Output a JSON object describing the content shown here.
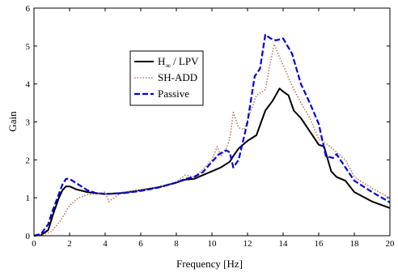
{
  "chart_data": {
    "type": "line",
    "xlabel": "Frequency [Hz]",
    "ylabel": "Gain",
    "xlim": [
      0,
      20
    ],
    "ylim": [
      0,
      6
    ],
    "xticks": [
      0,
      2,
      4,
      6,
      8,
      10,
      12,
      14,
      16,
      18,
      20
    ],
    "yticks": [
      0,
      1,
      2,
      3,
      4,
      5,
      6
    ],
    "grid": false,
    "legend_position": "upper-left",
    "series": [
      {
        "name": "H∞ / LPV",
        "legend_main": "H",
        "legend_sub": "∞",
        "legend_rest": " / LPV",
        "color": "#000000",
        "style": "solid",
        "points": [
          [
            0,
            0
          ],
          [
            0.4,
            0.02
          ],
          [
            0.8,
            0.15
          ],
          [
            1.1,
            0.6
          ],
          [
            1.4,
            1.0
          ],
          [
            1.6,
            1.2
          ],
          [
            1.8,
            1.3
          ],
          [
            2.0,
            1.3
          ],
          [
            2.4,
            1.22
          ],
          [
            3.0,
            1.15
          ],
          [
            3.5,
            1.12
          ],
          [
            4.0,
            1.1
          ],
          [
            5.0,
            1.13
          ],
          [
            6.0,
            1.2
          ],
          [
            7.0,
            1.28
          ],
          [
            8.0,
            1.4
          ],
          [
            8.5,
            1.48
          ],
          [
            9.0,
            1.5
          ],
          [
            9.5,
            1.6
          ],
          [
            10.0,
            1.7
          ],
          [
            10.5,
            1.8
          ],
          [
            11.0,
            1.95
          ],
          [
            11.2,
            2.1
          ],
          [
            11.5,
            2.3
          ],
          [
            12.0,
            2.5
          ],
          [
            12.5,
            2.65
          ],
          [
            13.0,
            3.3
          ],
          [
            13.4,
            3.55
          ],
          [
            13.8,
            3.88
          ],
          [
            14.0,
            3.8
          ],
          [
            14.3,
            3.7
          ],
          [
            14.6,
            3.3
          ],
          [
            15.0,
            3.1
          ],
          [
            15.5,
            2.75
          ],
          [
            16.0,
            2.4
          ],
          [
            16.3,
            2.35
          ],
          [
            16.7,
            1.7
          ],
          [
            17.0,
            1.55
          ],
          [
            17.5,
            1.45
          ],
          [
            18.0,
            1.15
          ],
          [
            19.0,
            0.9
          ],
          [
            20.0,
            0.73
          ]
        ]
      },
      {
        "name": "SH-ADD",
        "color": "#c0785a",
        "style": "dotted",
        "points": [
          [
            0,
            0
          ],
          [
            0.5,
            0.02
          ],
          [
            1.0,
            0.12
          ],
          [
            1.5,
            0.4
          ],
          [
            2.0,
            0.8
          ],
          [
            2.5,
            1.0
          ],
          [
            3.0,
            1.08
          ],
          [
            3.5,
            1.1
          ],
          [
            4.0,
            1.15
          ],
          [
            4.2,
            0.9
          ],
          [
            4.5,
            1.0
          ],
          [
            5.0,
            1.15
          ],
          [
            6.0,
            1.2
          ],
          [
            7.0,
            1.28
          ],
          [
            8.0,
            1.42
          ],
          [
            8.5,
            1.6
          ],
          [
            9.0,
            1.55
          ],
          [
            9.5,
            1.75
          ],
          [
            10.0,
            2.0
          ],
          [
            10.3,
            2.35
          ],
          [
            10.5,
            2.1
          ],
          [
            10.8,
            2.3
          ],
          [
            11.0,
            2.55
          ],
          [
            11.2,
            3.25
          ],
          [
            11.5,
            2.85
          ],
          [
            11.8,
            2.8
          ],
          [
            12.0,
            3.05
          ],
          [
            12.5,
            3.7
          ],
          [
            13.0,
            3.85
          ],
          [
            13.3,
            4.6
          ],
          [
            13.5,
            5.05
          ],
          [
            13.8,
            4.7
          ],
          [
            14.0,
            4.5
          ],
          [
            14.5,
            3.95
          ],
          [
            15.0,
            3.5
          ],
          [
            15.5,
            3.1
          ],
          [
            16.0,
            2.55
          ],
          [
            16.5,
            2.4
          ],
          [
            17.0,
            2.2
          ],
          [
            17.5,
            2.0
          ],
          [
            18.0,
            1.55
          ],
          [
            19.0,
            1.25
          ],
          [
            20.0,
            1.0
          ]
        ]
      },
      {
        "name": "Passive",
        "color": "#0000e0",
        "style": "dashed",
        "points": [
          [
            0,
            0
          ],
          [
            0.4,
            0.05
          ],
          [
            0.8,
            0.3
          ],
          [
            1.0,
            0.6
          ],
          [
            1.2,
            0.85
          ],
          [
            1.4,
            1.1
          ],
          [
            1.6,
            1.35
          ],
          [
            1.8,
            1.5
          ],
          [
            2.0,
            1.5
          ],
          [
            2.5,
            1.35
          ],
          [
            3.0,
            1.2
          ],
          [
            3.5,
            1.12
          ],
          [
            4.0,
            1.1
          ],
          [
            5.0,
            1.12
          ],
          [
            6.0,
            1.18
          ],
          [
            7.0,
            1.27
          ],
          [
            8.0,
            1.4
          ],
          [
            8.5,
            1.5
          ],
          [
            9.0,
            1.55
          ],
          [
            9.5,
            1.68
          ],
          [
            10.0,
            1.95
          ],
          [
            10.4,
            2.15
          ],
          [
            10.8,
            2.25
          ],
          [
            11.0,
            2.2
          ],
          [
            11.2,
            1.8
          ],
          [
            11.5,
            2.0
          ],
          [
            12.0,
            3.0
          ],
          [
            12.4,
            4.2
          ],
          [
            12.7,
            4.4
          ],
          [
            13.0,
            5.3
          ],
          [
            13.3,
            5.2
          ],
          [
            13.6,
            5.15
          ],
          [
            14.0,
            5.2
          ],
          [
            14.5,
            4.8
          ],
          [
            15.0,
            4.0
          ],
          [
            15.5,
            3.5
          ],
          [
            16.0,
            2.95
          ],
          [
            16.4,
            2.1
          ],
          [
            16.8,
            2.05
          ],
          [
            17.0,
            2.15
          ],
          [
            17.5,
            1.8
          ],
          [
            18.0,
            1.45
          ],
          [
            19.0,
            1.15
          ],
          [
            20.0,
            0.88
          ]
        ]
      }
    ]
  }
}
